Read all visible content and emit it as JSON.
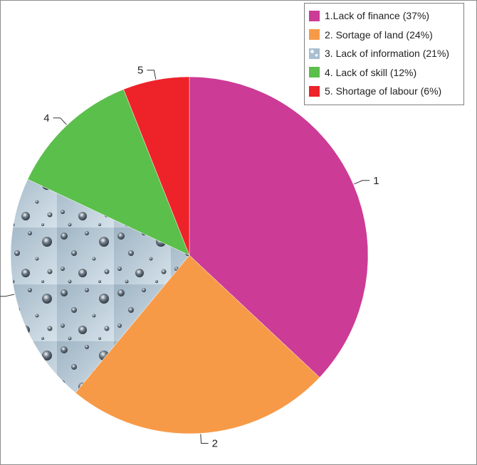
{
  "chart_data": {
    "type": "pie",
    "slices": [
      {
        "label": "1",
        "legend": "1.Lack of finance (37%)",
        "value": 37,
        "color": "#cc3b95",
        "fill": "solid"
      },
      {
        "label": "2",
        "legend": "2. Sortage of land (24%)",
        "value": 24,
        "color": "#f79a48",
        "fill": "solid"
      },
      {
        "label": "3",
        "legend": "3. Lack of information (21%)",
        "value": 21,
        "color": "#a9bfd0",
        "fill": "water-droplet-texture"
      },
      {
        "label": "4",
        "legend": "4. Lack of skill (12%)",
        "value": 12,
        "color": "#5bbf4b",
        "fill": "solid"
      },
      {
        "label": "5",
        "legend": "5. Shortage of labour (6%)",
        "value": 6,
        "color": "#ee2229",
        "fill": "solid"
      }
    ],
    "start": "12 o'clock",
    "direction": "clockwise",
    "legend_position": "top-right"
  }
}
